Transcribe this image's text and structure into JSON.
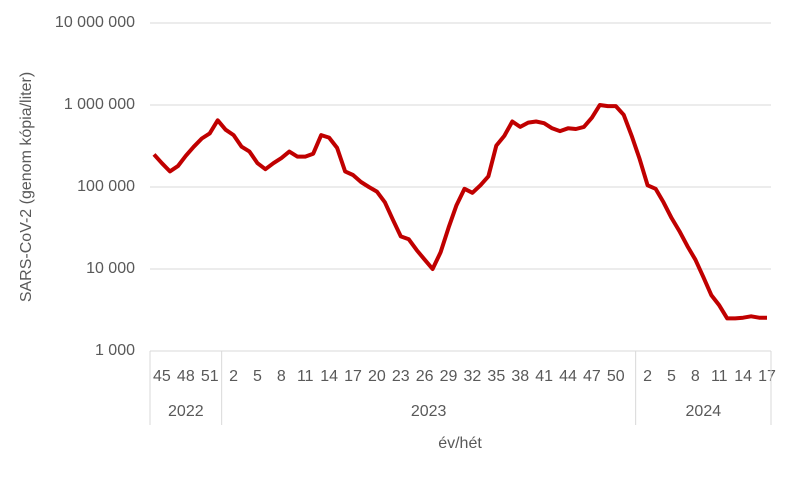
{
  "chart_data": {
    "type": "line",
    "y_label": "SARS-CoV-2 (genom kópia/liter)",
    "x_label": "év/hét",
    "log_scale": true,
    "grid": true,
    "ylim": [
      1000,
      10000000
    ],
    "yticks": [
      {
        "value": 1000,
        "label": "1 000"
      },
      {
        "value": 10000,
        "label": "10 000"
      },
      {
        "value": 100000,
        "label": "100 000"
      },
      {
        "value": 1000000,
        "label": "1 000 000"
      },
      {
        "value": 10000000,
        "label": "10 000 000"
      }
    ],
    "groups": [
      {
        "label": "2022",
        "count": 9
      },
      {
        "label": "2023",
        "count": 52
      },
      {
        "label": "2024",
        "count": 17
      }
    ],
    "categories": [
      null,
      "45",
      null,
      null,
      "48",
      null,
      null,
      "51",
      null,
      null,
      "2",
      null,
      null,
      "5",
      null,
      null,
      "8",
      null,
      null,
      "11",
      null,
      null,
      "14",
      null,
      null,
      "17",
      null,
      null,
      "20",
      null,
      null,
      "23",
      null,
      null,
      "26",
      null,
      null,
      "29",
      null,
      null,
      "32",
      null,
      null,
      "35",
      null,
      null,
      "38",
      null,
      null,
      "41",
      null,
      null,
      "44",
      null,
      null,
      "47",
      null,
      null,
      "50",
      null,
      null,
      null,
      "2",
      null,
      null,
      "5",
      null,
      null,
      "8",
      null,
      null,
      "11",
      null,
      null,
      "14",
      null,
      null,
      "17"
    ],
    "series": [
      {
        "name": "SARS-CoV-2",
        "color": "#c00000",
        "values": [
          250000,
          195000,
          155000,
          180000,
          240000,
          310000,
          390000,
          450000,
          650000,
          500000,
          430000,
          310000,
          270000,
          195000,
          165000,
          195000,
          225000,
          270000,
          235000,
          235000,
          255000,
          430000,
          400000,
          300000,
          155000,
          140000,
          115000,
          100000,
          88000,
          65000,
          40000,
          25000,
          23000,
          17000,
          13000,
          10000,
          16000,
          32000,
          60000,
          95000,
          85000,
          105000,
          135000,
          320000,
          420000,
          630000,
          540000,
          610000,
          630000,
          600000,
          520000,
          480000,
          520000,
          510000,
          540000,
          700000,
          1000000,
          970000,
          970000,
          760000,
          420000,
          220000,
          105000,
          95000,
          65000,
          42000,
          29000,
          19000,
          13000,
          8000,
          4800,
          3600,
          2500,
          2500,
          2550,
          2650,
          2550,
          2550
        ]
      }
    ]
  }
}
